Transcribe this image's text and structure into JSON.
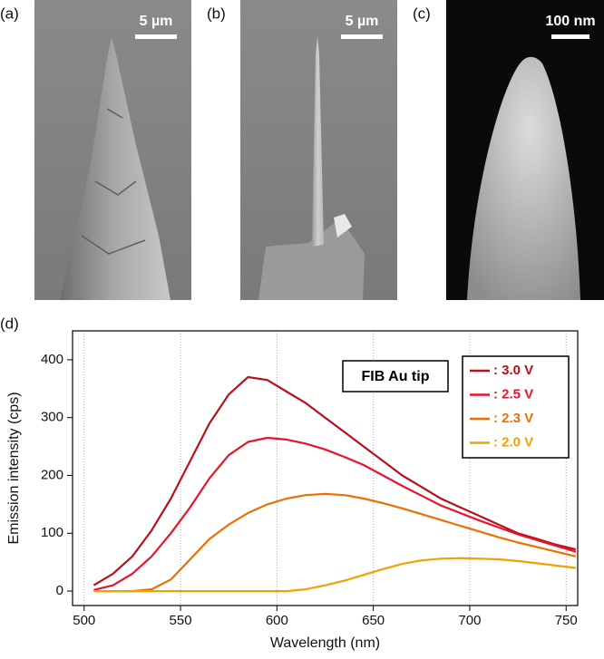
{
  "panels": [
    {
      "label": "(a)",
      "scale_bar": "5 µm"
    },
    {
      "label": "(b)",
      "scale_bar": "5 µm"
    },
    {
      "label": "(c)",
      "scale_bar": "100 nm"
    }
  ],
  "chart_data": {
    "type": "line",
    "label": "(d)",
    "xlabel": "Wavelength (nm)",
    "ylabel": "Emission intensity (cps)",
    "annotation": "FIB Au tip",
    "x": [
      505,
      515,
      525,
      535,
      545,
      555,
      565,
      575,
      585,
      595,
      605,
      615,
      625,
      635,
      645,
      655,
      665,
      675,
      685,
      695,
      705,
      715,
      725,
      735,
      745,
      755
    ],
    "series": [
      {
        "name": ": 3.0 V",
        "color": "#b8101c",
        "values": [
          10,
          30,
          60,
          105,
          160,
          225,
          290,
          340,
          370,
          365,
          345,
          325,
          300,
          275,
          250,
          225,
          200,
          180,
          160,
          145,
          130,
          115,
          100,
          90,
          80,
          72
        ]
      },
      {
        "name": ": 2.5 V",
        "color": "#e8142c",
        "values": [
          2,
          10,
          30,
          60,
          100,
          145,
          195,
          235,
          258,
          265,
          262,
          255,
          245,
          232,
          218,
          200,
          182,
          165,
          148,
          135,
          122,
          110,
          98,
          88,
          78,
          68
        ]
      },
      {
        "name": ": 2.3 V",
        "color": "#ec7000",
        "values": [
          0,
          0,
          0,
          3,
          20,
          55,
          90,
          115,
          135,
          150,
          160,
          166,
          168,
          166,
          160,
          152,
          143,
          133,
          123,
          113,
          103,
          93,
          84,
          76,
          68,
          60
        ]
      },
      {
        "name": ": 2.0 V",
        "color": "#f2a200",
        "values": [
          0,
          0,
          0,
          0,
          0,
          0,
          0,
          0,
          0,
          0,
          0,
          3,
          10,
          18,
          28,
          38,
          47,
          53,
          56,
          57,
          56,
          55,
          52,
          48,
          44,
          40
        ]
      }
    ],
    "xlim": [
      494,
      756
    ],
    "ylim": [
      -25,
      450
    ],
    "xticks": [
      500,
      550,
      600,
      650,
      700,
      750
    ],
    "yticks": [
      0,
      100,
      200,
      300,
      400
    ],
    "grid": "x",
    "legend": "upper right"
  }
}
